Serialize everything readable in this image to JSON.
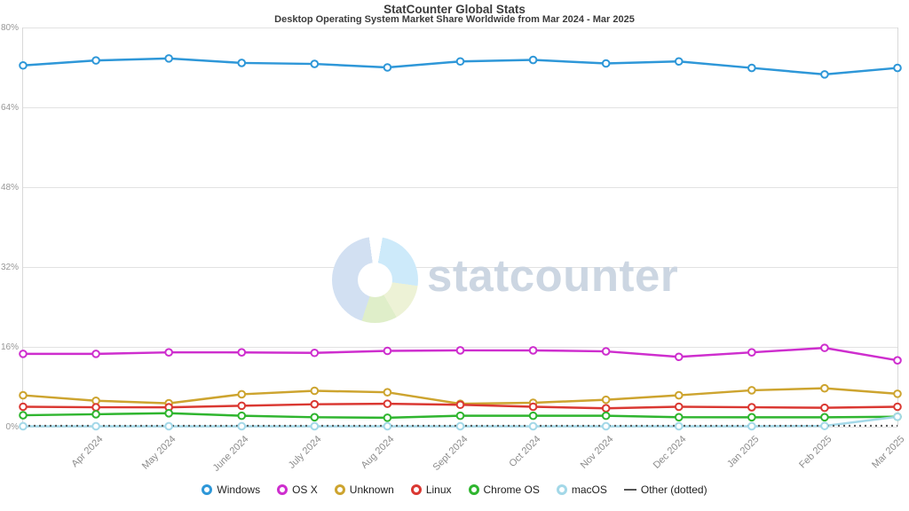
{
  "header": {
    "title": "StatCounter Global Stats",
    "subtitle": "Desktop Operating System Market Share Worldwide from Mar 2024 - Mar 2025"
  },
  "watermark": {
    "text": "statcounter"
  },
  "chart_data": {
    "type": "line",
    "title": "StatCounter Global Stats",
    "subtitle": "Desktop Operating System Market Share Worldwide from Mar 2024 - Mar 2025",
    "x": [
      "Mar 2024",
      "Apr 2024",
      "May 2024",
      "June 2024",
      "July 2024",
      "Aug 2024",
      "Sept 2024",
      "Oct 2024",
      "Nov 2024",
      "Dec 2024",
      "Jan 2025",
      "Feb 2025",
      "Mar 2025"
    ],
    "x_tick_labels": [
      "Apr 2024",
      "May 2024",
      "June 2024",
      "July 2024",
      "Aug 2024",
      "Sept 2024",
      "Oct 2024",
      "Nov 2024",
      "Dec 2024",
      "Jan 2025",
      "Feb 2025",
      "Mar 2025"
    ],
    "yticks": [
      "0%",
      "16%",
      "32%",
      "48%",
      "64%",
      "80%"
    ],
    "ylim": [
      0,
      80
    ],
    "grid": "horizontal",
    "legend_position": "bottom",
    "series": [
      {
        "name": "Windows",
        "color": "#2E97D8",
        "values": [
          72.4,
          73.4,
          73.8,
          72.9,
          72.7,
          72.0,
          73.2,
          73.5,
          72.8,
          73.2,
          71.9,
          70.6,
          71.9
        ]
      },
      {
        "name": "OS X",
        "color": "#CE2ECE",
        "values": [
          14.6,
          14.6,
          14.9,
          14.9,
          14.8,
          15.2,
          15.3,
          15.3,
          15.1,
          14.0,
          14.9,
          15.8,
          13.3
        ]
      },
      {
        "name": "Unknown",
        "color": "#CDA42F",
        "values": [
          6.3,
          5.2,
          4.7,
          6.5,
          7.2,
          6.9,
          4.6,
          4.8,
          5.4,
          6.3,
          7.3,
          7.7,
          6.6
        ]
      },
      {
        "name": "Linux",
        "color": "#DA3832",
        "values": [
          4.0,
          3.9,
          3.9,
          4.2,
          4.5,
          4.6,
          4.4,
          4.0,
          3.7,
          4.0,
          3.9,
          3.8,
          4.0
        ]
      },
      {
        "name": "Chrome OS",
        "color": "#2FB52F",
        "values": [
          2.3,
          2.5,
          2.7,
          2.2,
          1.9,
          1.8,
          2.2,
          2.2,
          2.2,
          1.9,
          1.9,
          1.9,
          2.0
        ]
      },
      {
        "name": "macOS",
        "color": "#A3D8E8",
        "values": [
          0.1,
          0.1,
          0.1,
          0.1,
          0.1,
          0.1,
          0.1,
          0.1,
          0.1,
          0.1,
          0.1,
          0.15,
          2.0
        ]
      },
      {
        "name": "Other (dotted)",
        "color": "#555555",
        "dashed": true,
        "markers": false,
        "values": [
          0.2,
          0.2,
          0.2,
          0.2,
          0.2,
          0.2,
          0.2,
          0.2,
          0.2,
          0.2,
          0.2,
          0.2,
          0.2
        ]
      }
    ]
  }
}
